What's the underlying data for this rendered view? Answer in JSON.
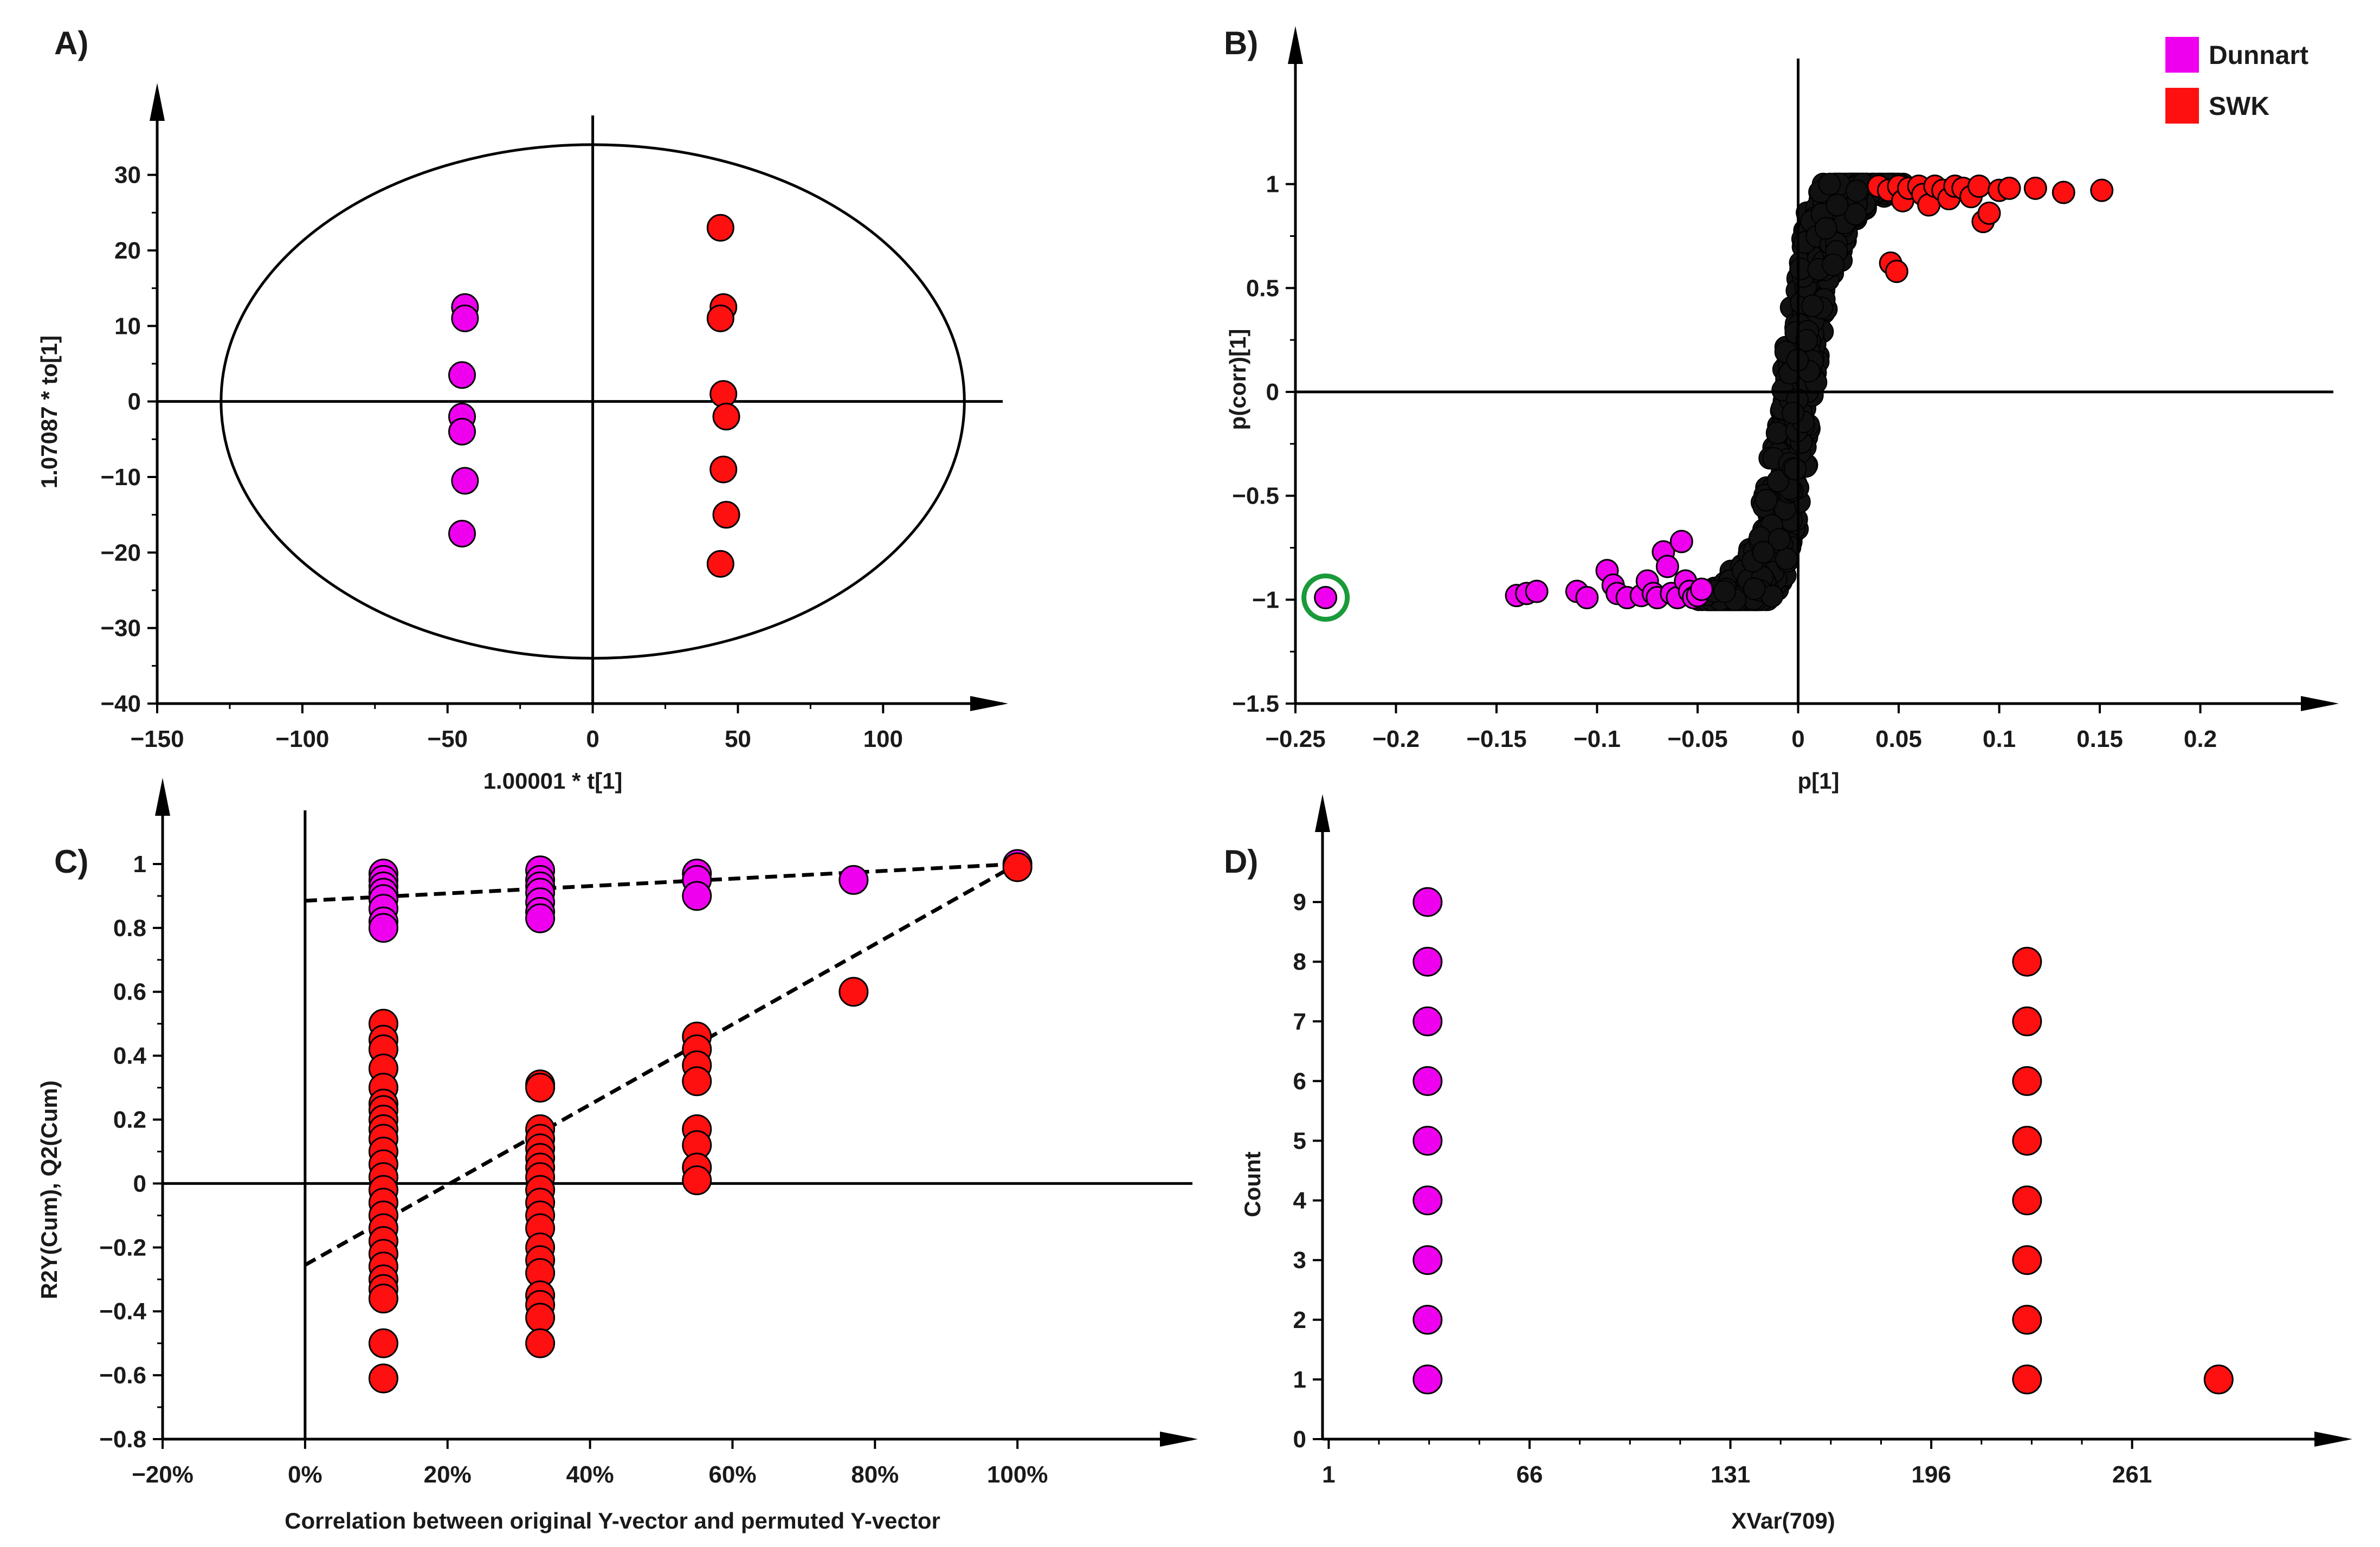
{
  "colors": {
    "dunnart": "#ee00ee",
    "swk": "#ff1010",
    "other": "#111111",
    "highlight": "#1a9a3a"
  },
  "legend": [
    {
      "name": "Dunnart",
      "color": "#ee00ee"
    },
    {
      "name": "SWK",
      "color": "#ff1010"
    }
  ],
  "chart_data": [
    {
      "id": "A",
      "panel_label": "A)",
      "type": "scatter",
      "xlabel": "1.00001 * t[1]",
      "ylabel": "1.07087 * to[1]",
      "xlim": [
        -150,
        130
      ],
      "ylim": [
        -40,
        35
      ],
      "xticks": [
        -150,
        -100,
        -50,
        0,
        50,
        100
      ],
      "xtick_labels": [
        "−150",
        "−100",
        "−50",
        "0",
        "50",
        "100"
      ],
      "yticks": [
        -40,
        -30,
        -20,
        -10,
        0,
        10,
        20,
        30
      ],
      "ytick_labels": [
        "−40",
        "−30",
        "−20",
        "−10",
        "0",
        "10",
        "20",
        "30"
      ],
      "ellipse": {
        "center": [
          0,
          0
        ],
        "rx": 128,
        "ry": 34
      },
      "series": [
        {
          "name": "Dunnart",
          "color": "#ee00ee",
          "points": [
            [
              -44,
              12.5
            ],
            [
              -44,
              11
            ],
            [
              -45,
              3.5
            ],
            [
              -45,
              -2
            ],
            [
              -45,
              -4
            ],
            [
              -44,
              -10.5
            ],
            [
              -45,
              -17.5
            ]
          ]
        },
        {
          "name": "SWK",
          "color": "#ff1010",
          "points": [
            [
              44,
              23
            ],
            [
              45,
              12.5
            ],
            [
              44,
              11
            ],
            [
              45,
              1
            ],
            [
              46,
              -2
            ],
            [
              45,
              -9
            ],
            [
              46,
              -15
            ],
            [
              44,
              -21.5
            ]
          ]
        }
      ]
    },
    {
      "id": "B",
      "panel_label": "B)",
      "type": "scatter",
      "xlabel": "p[1]",
      "ylabel": "p(corr)[1]",
      "xlim": [
        -0.25,
        0.25
      ],
      "ylim": [
        -1.5,
        1.5
      ],
      "xticks": [
        -0.25,
        -0.2,
        -0.15,
        -0.1,
        -0.05,
        0,
        0.05,
        0.1,
        0.15,
        0.2
      ],
      "xtick_labels": [
        "−0.25",
        "−0.2",
        "−0.15",
        "−0.1",
        "−0.05",
        "0",
        "0.05",
        "0.1",
        "0.15",
        "0.2"
      ],
      "yticks": [
        -1.5,
        -1,
        -0.5,
        0,
        0.5,
        1
      ],
      "ytick_labels": [
        "−1.5",
        "−1",
        "−0.5",
        "0",
        "0.5",
        "1"
      ],
      "highlight_point": [
        -0.235,
        -0.99
      ],
      "series": [
        {
          "name": "Dunnart",
          "color": "#ee00ee",
          "points": [
            [
              -0.235,
              -0.99
            ],
            [
              -0.14,
              -0.98
            ],
            [
              -0.135,
              -0.97
            ],
            [
              -0.13,
              -0.96
            ],
            [
              -0.11,
              -0.96
            ],
            [
              -0.105,
              -0.99
            ],
            [
              -0.095,
              -0.86
            ],
            [
              -0.092,
              -0.93
            ],
            [
              -0.09,
              -0.97
            ],
            [
              -0.085,
              -0.99
            ],
            [
              -0.078,
              -0.98
            ],
            [
              -0.075,
              -0.91
            ],
            [
              -0.072,
              -0.97
            ],
            [
              -0.07,
              -0.99
            ],
            [
              -0.067,
              -0.77
            ],
            [
              -0.065,
              -0.84
            ],
            [
              -0.063,
              -0.97
            ],
            [
              -0.06,
              -0.99
            ],
            [
              -0.058,
              -0.72
            ],
            [
              -0.056,
              -0.91
            ],
            [
              -0.054,
              -0.96
            ],
            [
              -0.052,
              -0.99
            ],
            [
              -0.05,
              -0.98
            ],
            [
              -0.048,
              -0.95
            ]
          ]
        },
        {
          "name": "SWK",
          "color": "#ff1010",
          "points": [
            [
              0.04,
              0.99
            ],
            [
              0.045,
              0.97
            ],
            [
              0.05,
              0.99
            ],
            [
              0.052,
              0.92
            ],
            [
              0.055,
              0.98
            ],
            [
              0.06,
              0.99
            ],
            [
              0.062,
              0.95
            ],
            [
              0.065,
              0.9
            ],
            [
              0.068,
              0.99
            ],
            [
              0.072,
              0.97
            ],
            [
              0.075,
              0.93
            ],
            [
              0.078,
              0.99
            ],
            [
              0.082,
              0.98
            ],
            [
              0.086,
              0.94
            ],
            [
              0.09,
              0.99
            ],
            [
              0.092,
              0.82
            ],
            [
              0.095,
              0.86
            ],
            [
              0.1,
              0.97
            ],
            [
              0.105,
              0.98
            ],
            [
              0.118,
              0.98
            ],
            [
              0.132,
              0.96
            ],
            [
              0.151,
              0.97
            ],
            [
              0.046,
              0.62
            ],
            [
              0.049,
              0.58
            ]
          ]
        }
      ]
    },
    {
      "id": "C",
      "panel_label": "C)",
      "type": "scatter",
      "xlabel": "Correlation between original Y-vector and permuted Y-vector",
      "ylabel": "R2Y(Cum), Q2(Cum)",
      "xlim": [
        -0.2,
        1.2
      ],
      "ylim": [
        -0.8,
        1.1
      ],
      "xticks": [
        -0.2,
        0,
        0.2,
        0.4,
        0.6,
        0.8,
        1.0
      ],
      "xtick_labels": [
        "−20%",
        "0%",
        "20%",
        "40%",
        "60%",
        "80%",
        "100%"
      ],
      "yticks": [
        -0.8,
        -0.6,
        -0.4,
        -0.2,
        0,
        0.2,
        0.4,
        0.6,
        0.8,
        1
      ],
      "ytick_labels": [
        "−0.8",
        "−0.6",
        "−0.4",
        "−0.2",
        "0",
        "0.2",
        "0.4",
        "0.6",
        "0.8",
        "1"
      ],
      "trendlines": [
        {
          "name": "R2Y",
          "from": [
            0,
            0.885
          ],
          "to": [
            1.0,
            1.0
          ]
        },
        {
          "name": "Q2",
          "from": [
            0,
            -0.255
          ],
          "to": [
            1.0,
            1.0
          ]
        }
      ],
      "series": [
        {
          "name": "R2Y(Cum)",
          "color": "#ee00ee",
          "points": [
            [
              0.11,
              0.97
            ],
            [
              0.11,
              0.95
            ],
            [
              0.11,
              0.93
            ],
            [
              0.11,
              0.91
            ],
            [
              0.11,
              0.89
            ],
            [
              0.11,
              0.86
            ],
            [
              0.11,
              0.82
            ],
            [
              0.11,
              0.8
            ],
            [
              0.33,
              0.98
            ],
            [
              0.33,
              0.95
            ],
            [
              0.33,
              0.93
            ],
            [
              0.33,
              0.91
            ],
            [
              0.33,
              0.88
            ],
            [
              0.33,
              0.85
            ],
            [
              0.33,
              0.83
            ],
            [
              0.55,
              0.97
            ],
            [
              0.55,
              0.95
            ],
            [
              0.55,
              0.9
            ],
            [
              0.77,
              0.95
            ],
            [
              1.0,
              1.0
            ]
          ]
        },
        {
          "name": "Q2(Cum)",
          "color": "#ff1010",
          "points": [
            [
              0.11,
              0.5
            ],
            [
              0.11,
              0.45
            ],
            [
              0.11,
              0.42
            ],
            [
              0.11,
              0.36
            ],
            [
              0.11,
              0.3
            ],
            [
              0.11,
              0.25
            ],
            [
              0.11,
              0.23
            ],
            [
              0.11,
              0.2
            ],
            [
              0.11,
              0.17
            ],
            [
              0.11,
              0.14
            ],
            [
              0.11,
              0.1
            ],
            [
              0.11,
              0.06
            ],
            [
              0.11,
              0.02
            ],
            [
              0.11,
              -0.02
            ],
            [
              0.11,
              -0.06
            ],
            [
              0.11,
              -0.1
            ],
            [
              0.11,
              -0.14
            ],
            [
              0.11,
              -0.18
            ],
            [
              0.11,
              -0.22
            ],
            [
              0.11,
              -0.26
            ],
            [
              0.11,
              -0.3
            ],
            [
              0.11,
              -0.33
            ],
            [
              0.11,
              -0.36
            ],
            [
              0.11,
              -0.5
            ],
            [
              0.11,
              -0.61
            ],
            [
              0.33,
              0.31
            ],
            [
              0.33,
              0.3
            ],
            [
              0.33,
              0.17
            ],
            [
              0.33,
              0.14
            ],
            [
              0.33,
              0.11
            ],
            [
              0.33,
              0.08
            ],
            [
              0.33,
              0.05
            ],
            [
              0.33,
              0.02
            ],
            [
              0.33,
              -0.02
            ],
            [
              0.33,
              -0.06
            ],
            [
              0.33,
              -0.1
            ],
            [
              0.33,
              -0.14
            ],
            [
              0.33,
              -0.2
            ],
            [
              0.33,
              -0.24
            ],
            [
              0.33,
              -0.28
            ],
            [
              0.33,
              -0.35
            ],
            [
              0.33,
              -0.38
            ],
            [
              0.33,
              -0.42
            ],
            [
              0.33,
              -0.5
            ],
            [
              0.55,
              0.46
            ],
            [
              0.55,
              0.42
            ],
            [
              0.55,
              0.37
            ],
            [
              0.55,
              0.32
            ],
            [
              0.55,
              0.17
            ],
            [
              0.55,
              0.12
            ],
            [
              0.55,
              0.05
            ],
            [
              0.55,
              0.01
            ],
            [
              0.77,
              0.6
            ],
            [
              1.0,
              0.99
            ]
          ]
        }
      ]
    },
    {
      "id": "D",
      "panel_label": "D)",
      "type": "scatter",
      "xlabel": "XVar(709)",
      "ylabel": "Count",
      "xlim": [
        -1,
        320
      ],
      "ylim": [
        0,
        9.9
      ],
      "xticks": [
        1,
        66,
        131,
        196,
        261
      ],
      "xtick_labels": [
        "1",
        "66",
        "131",
        "196",
        "261"
      ],
      "yticks": [
        0,
        1,
        2,
        3,
        4,
        5,
        6,
        7,
        8,
        9
      ],
      "ytick_labels": [
        "0",
        "1",
        "2",
        "3",
        "4",
        "5",
        "6",
        "7",
        "8",
        "9"
      ],
      "series": [
        {
          "name": "Dunnart",
          "color": "#ee00ee",
          "points": [
            [
              33,
              1
            ],
            [
              33,
              2
            ],
            [
              33,
              3
            ],
            [
              33,
              4
            ],
            [
              33,
              5
            ],
            [
              33,
              6
            ],
            [
              33,
              7
            ],
            [
              33,
              8
            ],
            [
              33,
              9
            ]
          ]
        },
        {
          "name": "SWK",
          "color": "#ff1010",
          "points": [
            [
              227,
              1
            ],
            [
              227,
              2
            ],
            [
              227,
              3
            ],
            [
              227,
              4
            ],
            [
              227,
              5
            ],
            [
              227,
              6
            ],
            [
              227,
              7
            ],
            [
              227,
              8
            ],
            [
              289,
              1
            ]
          ]
        }
      ]
    }
  ]
}
